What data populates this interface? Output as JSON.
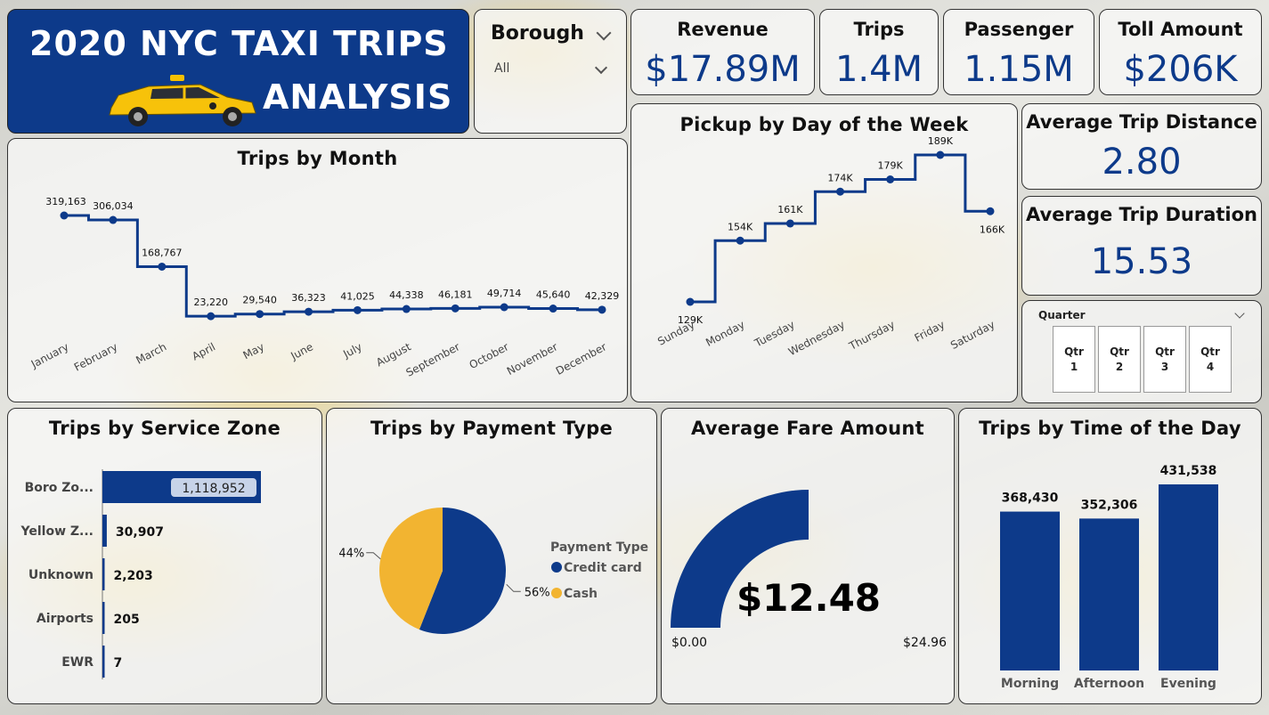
{
  "header": {
    "title_line1": "2020 NYC TAXI TRIPS",
    "title_line2": "ANALYSIS"
  },
  "slicer_borough": {
    "label": "Borough",
    "value": "All"
  },
  "kpis": {
    "revenue": {
      "label": "Revenue",
      "value": "$17.89M"
    },
    "trips": {
      "label": "Trips",
      "value": "1.4M"
    },
    "passenger": {
      "label": "Passenger",
      "value": "1.15M"
    },
    "toll": {
      "label": "Toll Amount",
      "value": "$206K"
    },
    "avg_distance": {
      "label": "Average Trip Distance",
      "value": "2.80"
    },
    "avg_duration": {
      "label": "Average Trip Duration",
      "value": "15.53"
    }
  },
  "slicer_quarter": {
    "label": "Quarter",
    "options": [
      {
        "line1": "Qtr",
        "line2": "1"
      },
      {
        "line1": "Qtr",
        "line2": "2"
      },
      {
        "line1": "Qtr",
        "line2": "3"
      },
      {
        "line1": "Qtr",
        "line2": "4"
      }
    ]
  },
  "colors": {
    "primary": "#0d3a8a",
    "accent": "#f2b431"
  },
  "chart_data": [
    {
      "id": "trips_by_month",
      "type": "line",
      "title": "Trips by Month",
      "categories": [
        "January",
        "February",
        "March",
        "April",
        "May",
        "June",
        "July",
        "August",
        "September",
        "October",
        "November",
        "December"
      ],
      "values": [
        319163,
        306034,
        168767,
        23220,
        29540,
        36323,
        41025,
        44338,
        46181,
        49714,
        45640,
        42329
      ],
      "labels": [
        "319,163",
        "306,034",
        "168,767",
        "23,220",
        "29,540",
        "36,323",
        "41,025",
        "44,338",
        "46,181",
        "49,714",
        "45,640",
        "42,329"
      ],
      "line_shape": "step"
    },
    {
      "id": "pickup_by_weekday",
      "type": "line",
      "title": "Pickup by Day of the Week",
      "categories": [
        "Sunday",
        "Monday",
        "Tuesday",
        "Wednesday",
        "Thursday",
        "Friday",
        "Saturday"
      ],
      "values": [
        129,
        154,
        161,
        174,
        179,
        189,
        166
      ],
      "labels": [
        "129K",
        "154K",
        "161K",
        "174K",
        "179K",
        "189K",
        "166K"
      ],
      "line_shape": "step"
    },
    {
      "id": "trips_by_service_zone",
      "type": "bar",
      "orientation": "horizontal",
      "title": "Trips by Service Zone",
      "categories": [
        "Boro Zo...",
        "Yellow Z...",
        "Unknown",
        "Airports",
        "EWR"
      ],
      "values": [
        1118952,
        30907,
        2203,
        205,
        7
      ],
      "labels": [
        "1,118,952",
        "30,907",
        "2,203",
        "205",
        "7"
      ]
    },
    {
      "id": "trips_by_payment_type",
      "type": "pie",
      "title": "Trips by Payment Type",
      "legend_title": "Payment Type",
      "categories": [
        "Credit card",
        "Cash"
      ],
      "values": [
        56,
        44
      ],
      "labels": [
        "56%",
        "44%"
      ],
      "colors": [
        "#0d3a8a",
        "#f2b431"
      ]
    },
    {
      "id": "average_fare_amount",
      "type": "gauge",
      "title": "Average Fare Amount",
      "value": 12.48,
      "min": 0,
      "max": 24.96,
      "value_label": "$12.48",
      "min_label": "$0.00",
      "max_label": "$24.96"
    },
    {
      "id": "trips_by_time_of_day",
      "type": "bar",
      "orientation": "vertical",
      "title": "Trips by Time of the Day",
      "categories": [
        "Morning",
        "Afternoon",
        "Evening"
      ],
      "values": [
        368430,
        352306,
        431538
      ],
      "labels": [
        "368,430",
        "352,306",
        "431,538"
      ]
    }
  ]
}
